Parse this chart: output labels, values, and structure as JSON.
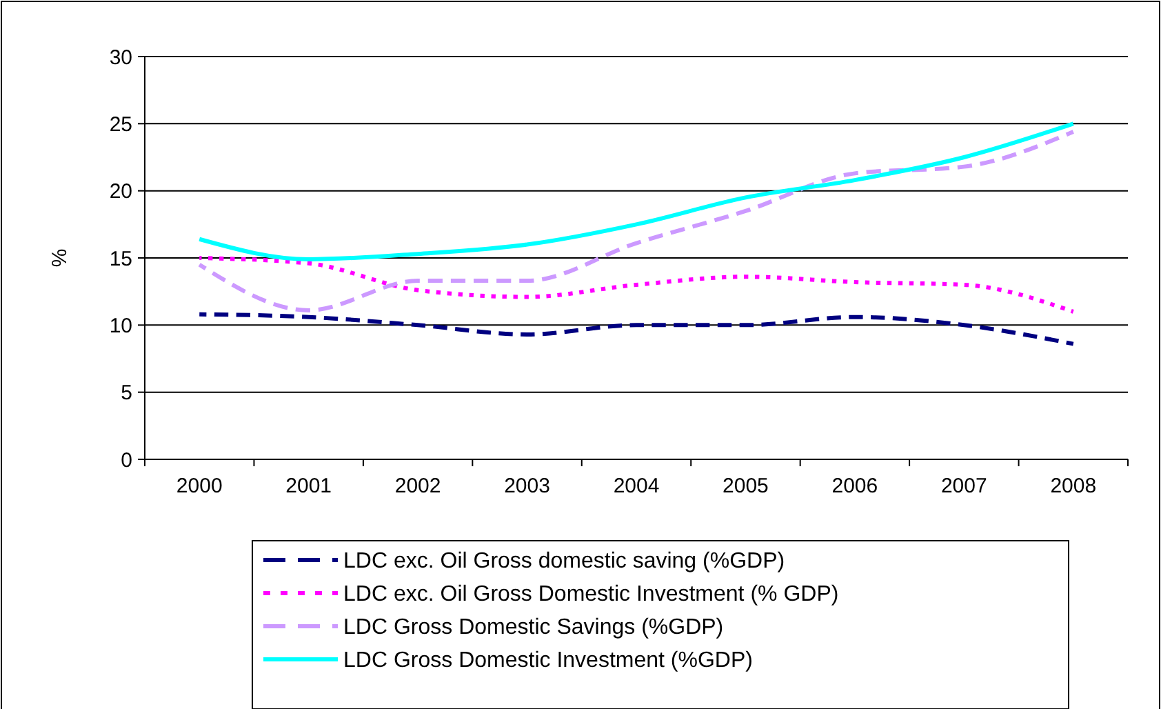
{
  "chart_data": {
    "type": "line",
    "ylabel": "%",
    "categories": [
      "2000",
      "2001",
      "2002",
      "2003",
      "2004",
      "2005",
      "2006",
      "2007",
      "2008"
    ],
    "ylim": [
      0,
      30
    ],
    "yticks": [
      0,
      5,
      10,
      15,
      20,
      25,
      30
    ],
    "grid": "y",
    "legend": "bottom",
    "marker": "none",
    "series": [
      {
        "name": "LDC exc. Oil Gross domestic saving (%GDP)",
        "color": "#000080",
        "line_style": "dashed",
        "values": [
          10.8,
          10.6,
          10.0,
          9.3,
          10.0,
          10.0,
          10.6,
          10.0,
          8.6
        ]
      },
      {
        "name": "LDC exc. Oil Gross Domestic Investment (% GDP)",
        "color": "#ff00ff",
        "line_style": "dotted",
        "values": [
          15.0,
          14.6,
          12.6,
          12.1,
          13.0,
          13.6,
          13.2,
          13.0,
          11.0
        ]
      },
      {
        "name": "LDC Gross Domestic Savings (%GDP)",
        "color": "#cc99ff",
        "line_style": "dashed",
        "values": [
          14.5,
          11.1,
          13.3,
          13.3,
          16.1,
          18.5,
          21.3,
          21.8,
          24.4
        ]
      },
      {
        "name": "LDC Gross Domestic Investment (%GDP)",
        "color": "#00ffff",
        "line_style": "solid",
        "values": [
          16.4,
          14.9,
          15.3,
          16.0,
          17.5,
          19.5,
          20.8,
          22.5,
          25.0
        ]
      }
    ]
  }
}
